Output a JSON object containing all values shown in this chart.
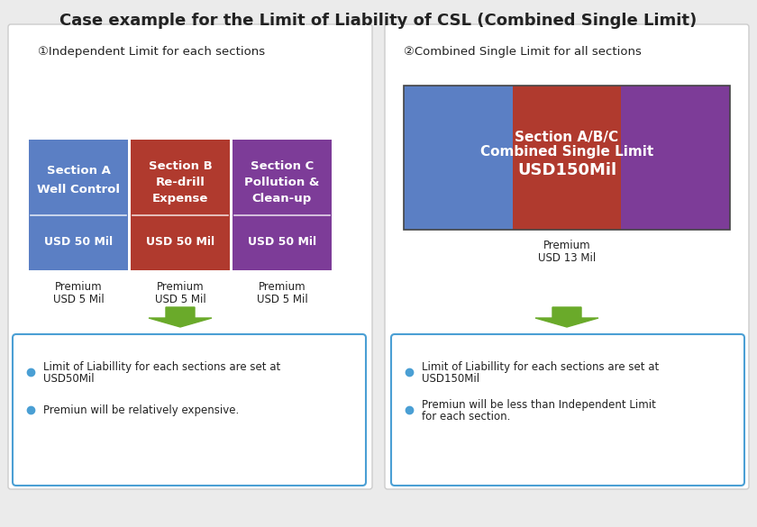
{
  "title": "Case example for the Limit of Liability of CSL (Combined Single Limit)",
  "title_fontsize": 13,
  "bg_color": "#ebebeb",
  "panel_bg": "#ffffff",
  "left_panel_title": "①Independent Limit for each sections",
  "right_panel_title": "②Combined Single Limit for all sections",
  "sec_a_color": "#5b7fc4",
  "sec_b_color": "#b03a2e",
  "sec_c_color": "#7d3c98",
  "sec_a_label1": "Section A",
  "sec_a_label2": "Well Control",
  "sec_a_amount": "USD 50 Mil",
  "sec_b_label1": "Section B",
  "sec_b_label2": "Re-drill",
  "sec_b_label3": "Expense",
  "sec_b_amount": "USD 50 Mil",
  "sec_c_label1": "Section C",
  "sec_c_label2": "Pollution &",
  "sec_c_label3": "Clean-up",
  "sec_c_amount": "USD 50 Mil",
  "combined_label1": "Section A/B/C",
  "combined_label2": "Combined Single Limit",
  "combined_amount": "USD150Mil",
  "right_premium1": "Premium",
  "right_premium2": "USD 13 Mil",
  "arrow_color": "#6aaa2a",
  "bullet_color": "#4a9fd4",
  "left_bullet1a": "Limit of Liabillity for each sections are set at",
  "left_bullet1b": "USD50Mil",
  "left_bullet2": "Premiun will be relatively expensive.",
  "right_bullet1a": "Limit of Liabillity for each sections are set at",
  "right_bullet1b": "USD150Mil",
  "right_bullet2a": "Premiun will be less than Independent Limit",
  "right_bullet2b": "for each section.",
  "box_border_color": "#4a9fd4",
  "text_color_dark": "#222222",
  "text_color_white": "#ffffff"
}
